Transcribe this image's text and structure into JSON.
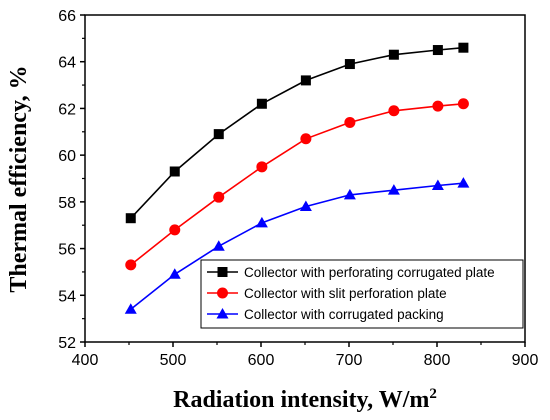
{
  "chart_data": {
    "type": "line",
    "title": "",
    "xlabel": "Radiation intensity, W/m",
    "xlabel_superscript": "2",
    "ylabel": "Thermal efficiency, %",
    "xlim": [
      400,
      900
    ],
    "ylim": [
      52,
      66
    ],
    "xticks": [
      400,
      500,
      600,
      700,
      800,
      900
    ],
    "yticks": [
      52,
      54,
      56,
      58,
      60,
      62,
      64,
      66
    ],
    "grid": false,
    "legend_position": "bottom-right",
    "x": [
      452,
      502,
      552,
      601,
      651,
      701,
      751,
      801,
      830
    ],
    "series": [
      {
        "name": "Collector with perforating corrugated plate",
        "color": "#000000",
        "marker": "square",
        "values": [
          57.3,
          59.3,
          60.9,
          62.2,
          63.2,
          63.9,
          64.3,
          64.5,
          64.6
        ]
      },
      {
        "name": "Collector with slit perforation plate",
        "color": "#ff0000",
        "marker": "circle",
        "values": [
          55.3,
          56.8,
          58.2,
          59.5,
          60.7,
          61.4,
          61.9,
          62.1,
          62.2
        ]
      },
      {
        "name": "Collector with corrugated packing",
        "color": "#0000ff",
        "marker": "triangle",
        "values": [
          53.4,
          54.9,
          56.1,
          57.1,
          57.8,
          58.3,
          58.5,
          58.7,
          58.8
        ]
      }
    ]
  }
}
